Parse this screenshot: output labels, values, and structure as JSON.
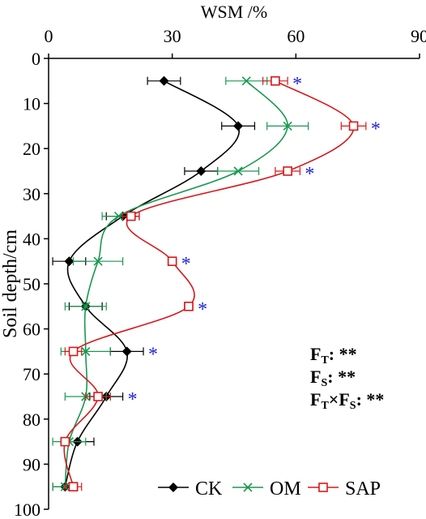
{
  "chart_data": {
    "type": "line",
    "orientation": "depth-profile",
    "xlabel": "WSM /%",
    "ylabel": "Soil depth/cm",
    "xlim": [
      0,
      90
    ],
    "ylim": [
      0,
      100
    ],
    "x_ticks": [
      "0",
      "30",
      "60",
      "90"
    ],
    "y_ticks": [
      "0",
      "10",
      "20",
      "30",
      "40",
      "50",
      "60",
      "70",
      "80",
      "90",
      "100"
    ],
    "x_axis_position": "top",
    "y_inverted": true,
    "grid": false,
    "legend_position": "bottom-right",
    "depth": [
      5,
      15,
      25,
      35,
      45,
      55,
      65,
      75,
      85,
      95
    ],
    "series": [
      {
        "name": "CK",
        "color": "#000000",
        "marker": "diamond",
        "values": [
          28,
          46,
          37,
          18,
          5,
          9,
          19,
          14,
          7,
          4
        ],
        "errors": [
          4,
          4,
          4,
          4,
          4,
          4,
          4,
          4,
          4,
          3
        ]
      },
      {
        "name": "OM",
        "color": "#1a9850",
        "marker": "x",
        "values": [
          48,
          58,
          46,
          17,
          12,
          9,
          9,
          9,
          5,
          4
        ],
        "errors": [
          5,
          5,
          5,
          4,
          6,
          5,
          6,
          5,
          4,
          3
        ]
      },
      {
        "name": "SAP",
        "color": "#d7191c",
        "marker": "square",
        "values": [
          55,
          74,
          58,
          20,
          30,
          34,
          6,
          12,
          4,
          6
        ],
        "errors": [
          3,
          3,
          3,
          2,
          1,
          1,
          2,
          3,
          1,
          2
        ]
      }
    ],
    "significance": {
      "symbol": "*",
      "color": "#1f1fdc",
      "depths": [
        5,
        15,
        25,
        45,
        55,
        65,
        75
      ]
    },
    "annotations": [
      {
        "main": "F",
        "sub": "T",
        "tail": ": **"
      },
      {
        "main": "F",
        "sub": "S",
        "tail": ": **"
      },
      {
        "main": "F",
        "sub": "T",
        "mid": "×F",
        "sub2": "S",
        "tail": ": **"
      }
    ]
  }
}
